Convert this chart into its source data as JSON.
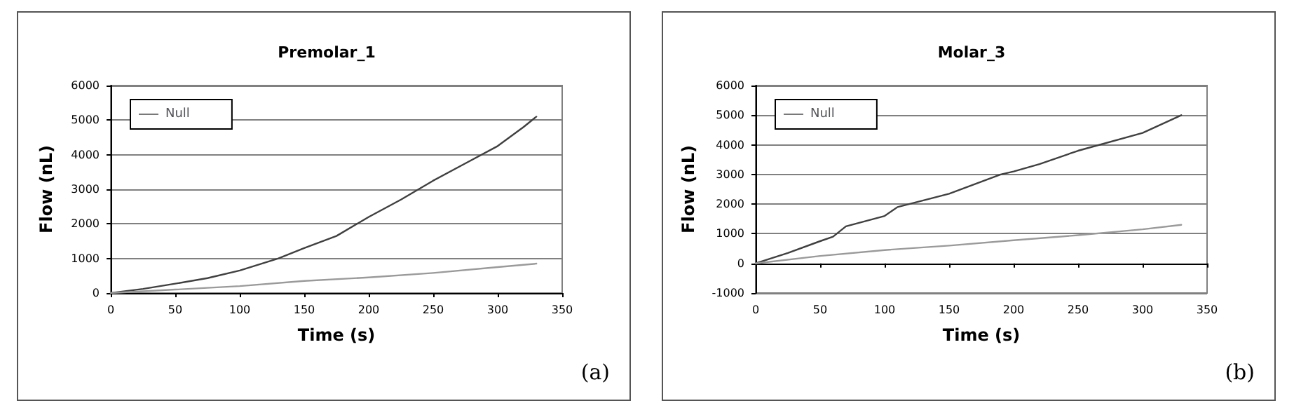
{
  "chart_data": [
    {
      "type": "line",
      "title": "Premolar_1",
      "xlabel": "Time (s)",
      "ylabel": "Flow (nL)",
      "annotations": [
        "(a)"
      ],
      "xlim": [
        0,
        350
      ],
      "xticks": [
        0,
        50,
        100,
        150,
        200,
        250,
        300,
        350
      ],
      "ylim": [
        0,
        6000
      ],
      "yticks": [
        0,
        1000,
        2000,
        3000,
        4000,
        5000,
        6000
      ],
      "grid": "y",
      "legend": "top left",
      "marker": "none",
      "line_style": "solid",
      "series": [
        {
          "name": "Null",
          "color": "#404040",
          "x": [
            0,
            25,
            50,
            75,
            100,
            130,
            150,
            175,
            200,
            225,
            250,
            275,
            300,
            320,
            330
          ],
          "values": [
            0,
            120,
            270,
            430,
            650,
            1000,
            1300,
            1650,
            2200,
            2700,
            3250,
            3750,
            4250,
            4800,
            5100
          ]
        },
        {
          "color": "#9a9a9a",
          "x": [
            0,
            50,
            100,
            150,
            200,
            250,
            300,
            330
          ],
          "values": [
            0,
            100,
            200,
            350,
            450,
            580,
            750,
            850
          ]
        }
      ]
    },
    {
      "type": "line",
      "title": "Molar_3",
      "xlabel": "Time (s)",
      "ylabel": "Flow (nL)",
      "annotations": [
        "(b)"
      ],
      "xlim": [
        0,
        350
      ],
      "xticks": [
        0,
        50,
        100,
        150,
        200,
        250,
        300,
        350
      ],
      "ylim": [
        -1000,
        6000
      ],
      "yticks": [
        -1000,
        0,
        1000,
        2000,
        3000,
        4000,
        5000,
        6000
      ],
      "grid": "y",
      "legend": "top left",
      "marker": "none",
      "line_style": "solid",
      "series": [
        {
          "name": "Null",
          "color": "#404040",
          "x": [
            0,
            25,
            50,
            60,
            70,
            100,
            110,
            150,
            190,
            200,
            220,
            250,
            300,
            330
          ],
          "values": [
            0,
            350,
            750,
            900,
            1250,
            1600,
            1900,
            2350,
            3000,
            3100,
            3350,
            3800,
            4400,
            5000
          ]
        },
        {
          "color": "#9a9a9a",
          "x": [
            0,
            50,
            100,
            150,
            200,
            250,
            300,
            330
          ],
          "values": [
            0,
            250,
            450,
            600,
            780,
            950,
            1150,
            1300
          ]
        }
      ]
    }
  ]
}
